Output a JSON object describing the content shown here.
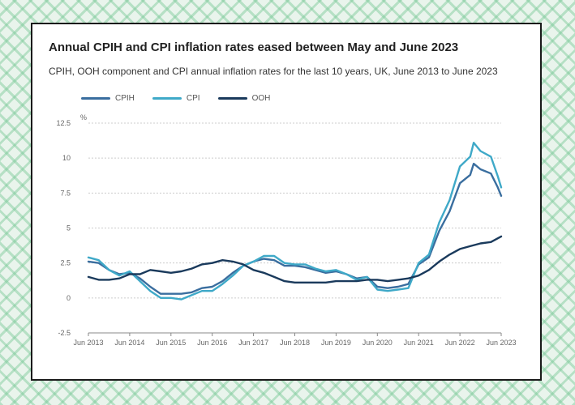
{
  "chart_data": {
    "type": "line",
    "title": "Annual CPIH and CPI inflation rates eased between May and June 2023",
    "subtitle": "CPIH, OOH component and CPI annual inflation rates for the last 10 years, UK, June 2013 to June 2023",
    "ylabel": "%",
    "xlabel": "",
    "ylim": [
      -2.5,
      12.5
    ],
    "yticks": [
      "12.5",
      "10",
      "7.5",
      "5",
      "2.5",
      "0",
      "-2.5"
    ],
    "xticks": [
      "Jun 2013",
      "Jun 2014",
      "Jun 2015",
      "Jun 2016",
      "Jun 2017",
      "Jun 2018",
      "Jun 2019",
      "Jun 2020",
      "Jun 2021",
      "Jun 2022",
      "Jun 2023"
    ],
    "grid": true,
    "legend_position": "top-left",
    "series": [
      {
        "name": "CPIH",
        "color": "#3a6e9f",
        "points": [
          [
            "2013-06",
            2.6
          ],
          [
            "2013-09",
            2.5
          ],
          [
            "2013-12",
            2.0
          ],
          [
            "2014-03",
            1.7
          ],
          [
            "2014-06",
            1.8
          ],
          [
            "2014-09",
            1.4
          ],
          [
            "2014-12",
            0.8
          ],
          [
            "2015-03",
            0.3
          ],
          [
            "2015-06",
            0.3
          ],
          [
            "2015-09",
            0.3
          ],
          [
            "2015-12",
            0.4
          ],
          [
            "2016-03",
            0.7
          ],
          [
            "2016-06",
            0.8
          ],
          [
            "2016-09",
            1.2
          ],
          [
            "2016-12",
            1.8
          ],
          [
            "2017-03",
            2.3
          ],
          [
            "2017-06",
            2.6
          ],
          [
            "2017-09",
            2.8
          ],
          [
            "2017-12",
            2.7
          ],
          [
            "2018-03",
            2.3
          ],
          [
            "2018-06",
            2.3
          ],
          [
            "2018-09",
            2.2
          ],
          [
            "2018-12",
            2.0
          ],
          [
            "2019-03",
            1.8
          ],
          [
            "2019-06",
            1.9
          ],
          [
            "2019-09",
            1.7
          ],
          [
            "2019-12",
            1.4
          ],
          [
            "2020-03",
            1.5
          ],
          [
            "2020-06",
            0.8
          ],
          [
            "2020-09",
            0.7
          ],
          [
            "2020-12",
            0.8
          ],
          [
            "2021-03",
            1.0
          ],
          [
            "2021-06",
            2.4
          ],
          [
            "2021-09",
            2.9
          ],
          [
            "2021-12",
            4.8
          ],
          [
            "2022-03",
            6.2
          ],
          [
            "2022-06",
            8.2
          ],
          [
            "2022-09",
            8.8
          ],
          [
            "2022-10",
            9.6
          ],
          [
            "2022-12",
            9.2
          ],
          [
            "2023-03",
            8.9
          ],
          [
            "2023-05",
            7.9
          ],
          [
            "2023-06",
            7.3
          ]
        ]
      },
      {
        "name": "CPI",
        "color": "#3fa9c8",
        "points": [
          [
            "2013-06",
            2.9
          ],
          [
            "2013-09",
            2.7
          ],
          [
            "2013-12",
            2.0
          ],
          [
            "2014-03",
            1.6
          ],
          [
            "2014-06",
            1.9
          ],
          [
            "2014-09",
            1.2
          ],
          [
            "2014-12",
            0.5
          ],
          [
            "2015-03",
            0.0
          ],
          [
            "2015-06",
            0.0
          ],
          [
            "2015-09",
            -0.1
          ],
          [
            "2015-12",
            0.2
          ],
          [
            "2016-03",
            0.5
          ],
          [
            "2016-06",
            0.5
          ],
          [
            "2016-09",
            1.0
          ],
          [
            "2016-12",
            1.6
          ],
          [
            "2017-03",
            2.3
          ],
          [
            "2017-06",
            2.6
          ],
          [
            "2017-09",
            3.0
          ],
          [
            "2017-12",
            3.0
          ],
          [
            "2018-03",
            2.5
          ],
          [
            "2018-06",
            2.4
          ],
          [
            "2018-09",
            2.4
          ],
          [
            "2018-12",
            2.1
          ],
          [
            "2019-03",
            1.9
          ],
          [
            "2019-06",
            2.0
          ],
          [
            "2019-09",
            1.7
          ],
          [
            "2019-12",
            1.3
          ],
          [
            "2020-03",
            1.5
          ],
          [
            "2020-06",
            0.6
          ],
          [
            "2020-09",
            0.5
          ],
          [
            "2020-12",
            0.6
          ],
          [
            "2021-03",
            0.7
          ],
          [
            "2021-06",
            2.5
          ],
          [
            "2021-09",
            3.1
          ],
          [
            "2021-12",
            5.4
          ],
          [
            "2022-03",
            7.0
          ],
          [
            "2022-06",
            9.4
          ],
          [
            "2022-09",
            10.1
          ],
          [
            "2022-10",
            11.1
          ],
          [
            "2022-12",
            10.5
          ],
          [
            "2023-03",
            10.1
          ],
          [
            "2023-05",
            8.7
          ],
          [
            "2023-06",
            7.9
          ]
        ]
      },
      {
        "name": "OOH",
        "color": "#1a3a5c",
        "points": [
          [
            "2013-06",
            1.5
          ],
          [
            "2013-09",
            1.3
          ],
          [
            "2013-12",
            1.3
          ],
          [
            "2014-03",
            1.4
          ],
          [
            "2014-06",
            1.7
          ],
          [
            "2014-09",
            1.7
          ],
          [
            "2014-12",
            2.0
          ],
          [
            "2015-03",
            1.9
          ],
          [
            "2015-06",
            1.8
          ],
          [
            "2015-09",
            1.9
          ],
          [
            "2015-12",
            2.1
          ],
          [
            "2016-03",
            2.4
          ],
          [
            "2016-06",
            2.5
          ],
          [
            "2016-09",
            2.7
          ],
          [
            "2016-12",
            2.6
          ],
          [
            "2017-03",
            2.4
          ],
          [
            "2017-06",
            2.0
          ],
          [
            "2017-09",
            1.8
          ],
          [
            "2017-12",
            1.5
          ],
          [
            "2018-03",
            1.2
          ],
          [
            "2018-06",
            1.1
          ],
          [
            "2018-09",
            1.1
          ],
          [
            "2018-12",
            1.1
          ],
          [
            "2019-03",
            1.1
          ],
          [
            "2019-06",
            1.2
          ],
          [
            "2019-09",
            1.2
          ],
          [
            "2019-12",
            1.2
          ],
          [
            "2020-03",
            1.3
          ],
          [
            "2020-06",
            1.3
          ],
          [
            "2020-09",
            1.2
          ],
          [
            "2020-12",
            1.3
          ],
          [
            "2021-03",
            1.4
          ],
          [
            "2021-06",
            1.6
          ],
          [
            "2021-09",
            2.0
          ],
          [
            "2021-12",
            2.6
          ],
          [
            "2022-03",
            3.1
          ],
          [
            "2022-06",
            3.5
          ],
          [
            "2022-09",
            3.7
          ],
          [
            "2022-12",
            3.9
          ],
          [
            "2023-03",
            4.0
          ],
          [
            "2023-06",
            4.4
          ]
        ]
      }
    ]
  }
}
